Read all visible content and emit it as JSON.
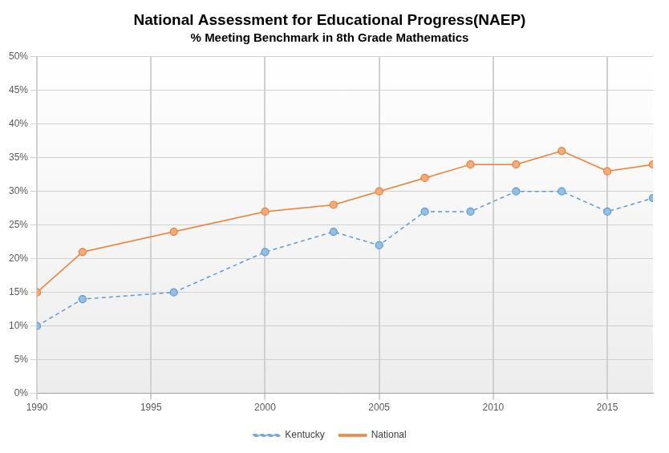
{
  "chart_data": {
    "type": "line",
    "title": "National Assessment for Educational Progress(NAEP)",
    "subtitle": "% Meeting Benchmark in 8th Grade Mathematics",
    "x": [
      1990,
      1992,
      1996,
      2000,
      2003,
      2005,
      2007,
      2009,
      2011,
      2013,
      2015,
      2017
    ],
    "series": [
      {
        "name": "Kentucky",
        "color": "#5b9bd5",
        "marker": "circle",
        "line_style": "dashed",
        "values": [
          10,
          14,
          15,
          21,
          24,
          22,
          27,
          27,
          30,
          30,
          27,
          29
        ]
      },
      {
        "name": "National",
        "color": "#ed7d31",
        "marker": "circle",
        "line_style": "solid",
        "values": [
          15,
          21,
          24,
          27,
          28,
          30,
          32,
          34,
          34,
          36,
          33,
          34
        ]
      }
    ],
    "xlim": [
      1990,
      2017
    ],
    "xticks": [
      1990,
      1995,
      2000,
      2005,
      2010,
      2015
    ],
    "ylim": [
      0,
      50
    ],
    "yticks": [
      {
        "value": 0,
        "label": "0%"
      },
      {
        "value": 5,
        "label": "5%"
      },
      {
        "value": 10,
        "label": "10%"
      },
      {
        "value": 15,
        "label": "15%"
      },
      {
        "value": 20,
        "label": "20%"
      },
      {
        "value": 25,
        "label": "25%"
      },
      {
        "value": 30,
        "label": "30%"
      },
      {
        "value": 35,
        "label": "35%"
      },
      {
        "value": 40,
        "label": "40%"
      },
      {
        "value": 45,
        "label": "45%"
      },
      {
        "value": 50,
        "label": "50%"
      }
    ],
    "grid": true,
    "legend": "bottom"
  }
}
